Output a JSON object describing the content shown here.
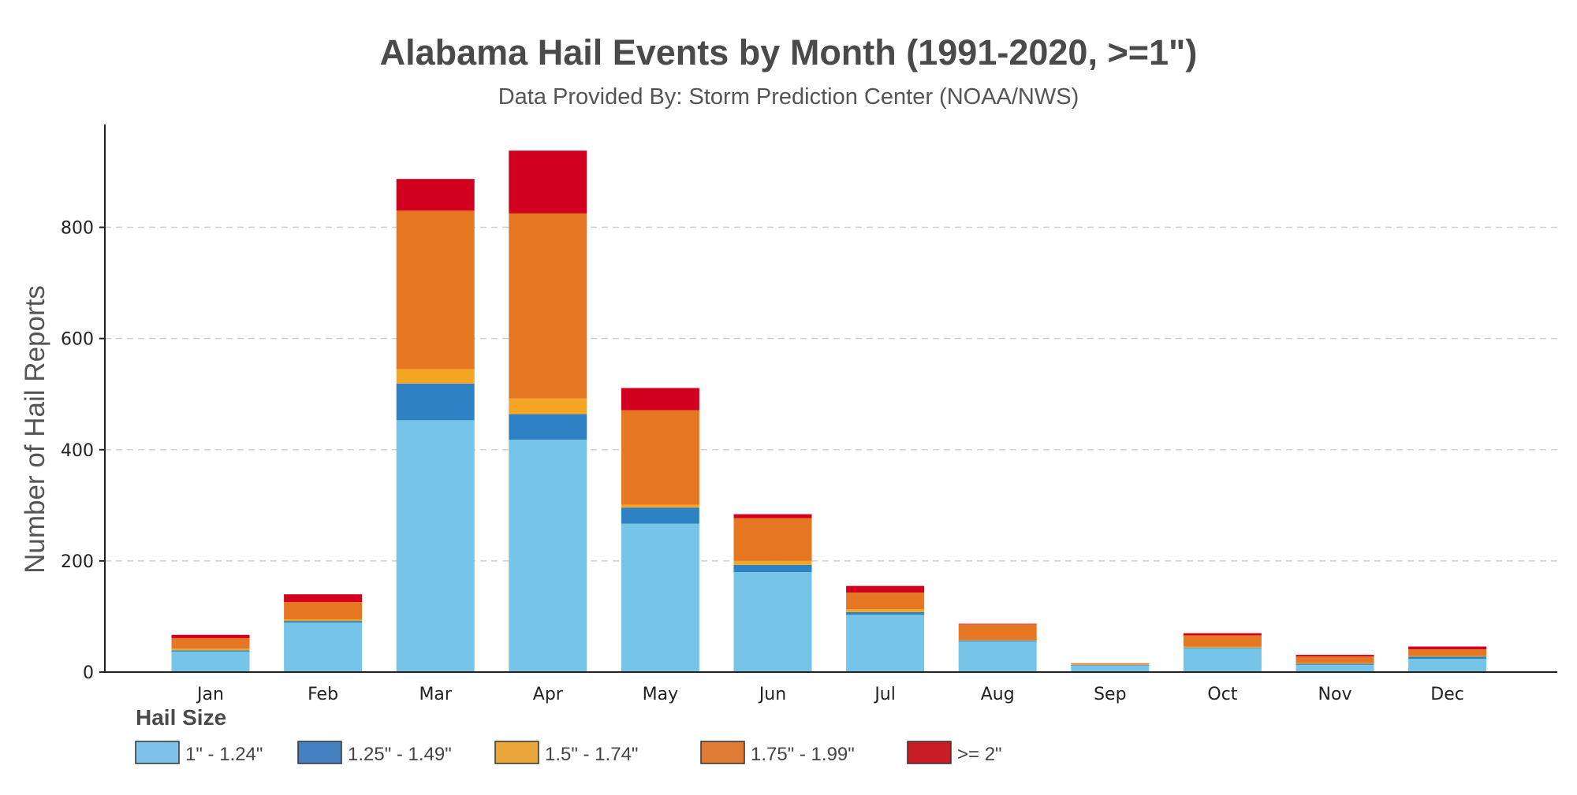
{
  "chart_data": {
    "type": "bar",
    "stacked": true,
    "title": "Alabama Hail Events by Month (1991-2020, >=1\")",
    "subtitle": "Data Provided By: Storm Prediction Center (NOAA/NWS)",
    "xlabel": "",
    "ylabel": "Number of Hail Reports",
    "ylim": [
      0,
      985
    ],
    "yticks": [
      0,
      200,
      400,
      600,
      800
    ],
    "grid": "horizontal dashed",
    "legend_title": "Hail Size",
    "legend_position": "bottom-left",
    "categories": [
      "Jan",
      "Feb",
      "Mar",
      "Apr",
      "May",
      "Jun",
      "Jul",
      "Aug",
      "Sep",
      "Oct",
      "Nov",
      "Dec"
    ],
    "series": [
      {
        "name": "1\" - 1.24\"",
        "color": "#76c4e8",
        "legend_color": "#7dc3ea",
        "values": [
          37,
          89,
          453,
          418,
          267,
          180,
          103,
          55,
          12,
          43,
          13,
          24
        ]
      },
      {
        "name": "1.25\" - 1.49\"",
        "color": "#2e82c3",
        "legend_color": "#4580c0",
        "values": [
          2,
          3,
          66,
          46,
          29,
          13,
          5,
          2,
          1,
          1,
          2,
          4
        ]
      },
      {
        "name": "1.5\" - 1.74\"",
        "color": "#f4a623",
        "legend_color": "#e9a63a",
        "values": [
          3,
          3,
          26,
          28,
          5,
          7,
          5,
          1,
          1,
          2,
          1,
          1
        ]
      },
      {
        "name": "1.75\" - 1.99\"",
        "color": "#e67722",
        "legend_color": "#e07b35",
        "values": [
          19,
          31,
          285,
          333,
          170,
          77,
          30,
          28,
          2,
          20,
          12,
          12
        ]
      },
      {
        "name": ">= 2\"",
        "color": "#d2001e",
        "legend_color": "#c81d25",
        "values": [
          6,
          14,
          57,
          113,
          40,
          7,
          12,
          1,
          0,
          4,
          3,
          5
        ]
      }
    ]
  }
}
